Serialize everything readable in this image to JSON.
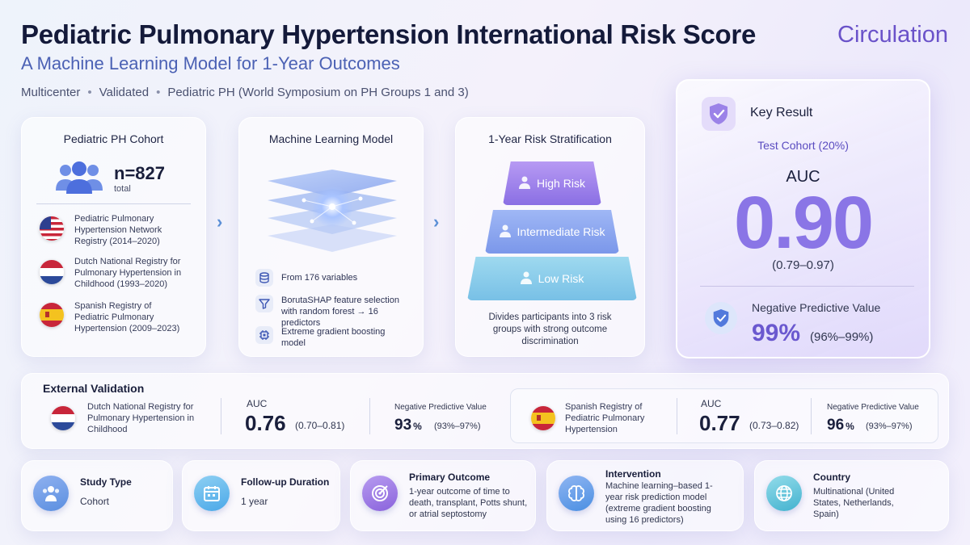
{
  "header": {
    "title": "Pediatric Pulmonary Hypertension International Risk Score",
    "subtitle": "A Machine Learning Model for 1-Year Outcomes",
    "journal": "Circulation",
    "tags": [
      "Multicenter",
      "Validated",
      "Pediatric PH (World Symposium on PH Groups 1 and 3)"
    ]
  },
  "cohort": {
    "title": "Pediatric PH Cohort",
    "n": "n=827",
    "n_label": "total",
    "registries": [
      {
        "flag": "united-states",
        "text": "Pediatric Pulmonary Hypertension Network Registry (2014–2020)"
      },
      {
        "flag": "netherlands",
        "text": "Dutch National Registry for Pulmonary Hypertension in Childhood (1993–2020)"
      },
      {
        "flag": "spain",
        "text": "Spanish Registry of Pediatric Pulmonary Hypertension (2009–2023)"
      }
    ]
  },
  "model": {
    "title": "Machine Learning Model",
    "steps": [
      {
        "icon": "database-icon",
        "text": "From 176 variables"
      },
      {
        "icon": "funnel-icon",
        "text": "BorutaSHAP feature selection with random forest → 16 predictors"
      },
      {
        "icon": "chip-icon",
        "text": "Extreme gradient boosting model"
      }
    ]
  },
  "risk": {
    "title": "1-Year Risk Stratification",
    "tiers": [
      "High Risk",
      "Intermediate Risk",
      "Low Risk"
    ],
    "description": "Divides participants into 3 risk groups with strong outcome discrimination"
  },
  "key_result": {
    "label": "Key Result",
    "cohort": "Test Cohort (20%)",
    "auc_label": "AUC",
    "auc": "0.90",
    "auc_ci": "(0.79–0.97)",
    "npv_label": "Negative Predictive Value",
    "npv": "99%",
    "npv_ci": "(96%–99%)"
  },
  "external": {
    "title": "External Validation",
    "cohorts": [
      {
        "flag": "netherlands",
        "name": "Dutch National Registry for Pulmonary Hypertension in Childhood",
        "auc_label": "AUC",
        "auc": "0.76",
        "auc_ci": "(0.70–0.81)",
        "npv_label": "Negative Predictive Value",
        "npv": "93",
        "npv_unit": "%",
        "npv_ci": "(93%–97%)"
      },
      {
        "flag": "spain",
        "name": "Spanish Registry of Pediatric Pulmonary Hypertension",
        "auc_label": "AUC",
        "auc": "0.77",
        "auc_ci": "(0.73–0.82)",
        "npv_label": "Negative Predictive Value",
        "npv": "96",
        "npv_unit": "%",
        "npv_ci": "(93%–97%)"
      }
    ]
  },
  "summary": [
    {
      "icon": "people-icon",
      "label": "Study Type",
      "value": "Cohort",
      "color": "#5b8fe0"
    },
    {
      "icon": "calendar-icon",
      "label": "Follow-up Duration",
      "value": "1 year",
      "color": "#4aa8e8"
    },
    {
      "icon": "target-icon",
      "label": "Primary Outcome",
      "value": "1-year outcome of time to death, transplant, Potts shunt, or atrial septostomy",
      "color": "#8a63dc"
    },
    {
      "icon": "brain-icon",
      "label": "Intervention",
      "value": "Machine learning–based 1-year risk prediction model (extreme gradient boosting using 16 predictors)",
      "color": "#4b8fe2"
    },
    {
      "icon": "globe-icon",
      "label": "Country",
      "value": "Multinational (United States, Netherlands, Spain)",
      "color": "#43b2cf"
    }
  ]
}
